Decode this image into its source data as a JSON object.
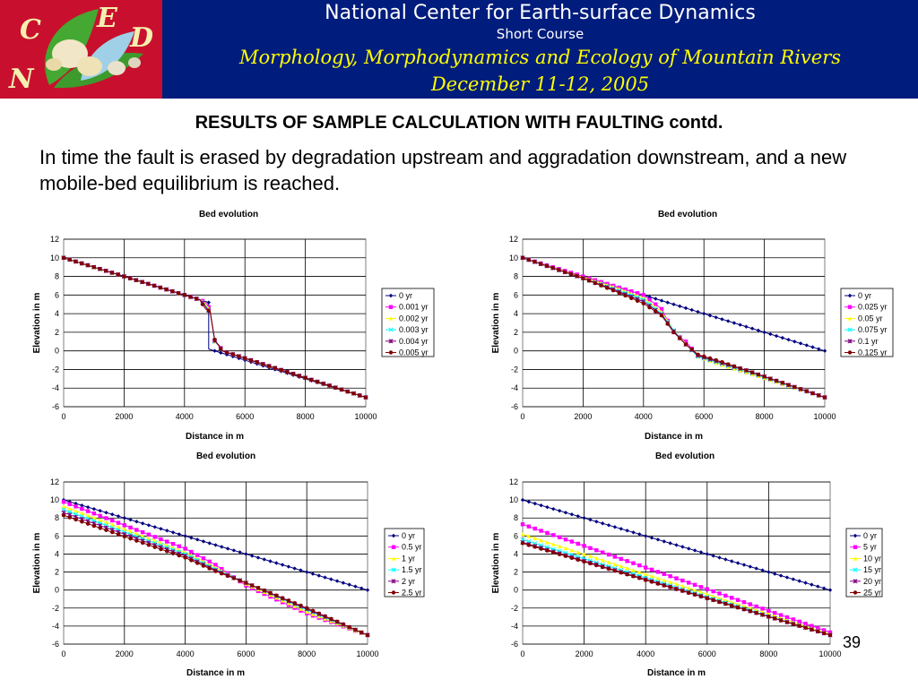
{
  "header": {
    "logo_letters": [
      "C",
      "E",
      "D",
      "N"
    ],
    "organization": "National Center for Earth-surface Dynamics",
    "course": "Short Course",
    "topic": "Morphology, Morphodynamics and Ecology of Mountain Rivers",
    "dates": "December 11-12, 2005",
    "colors": {
      "background": "#001c7c",
      "logo_background": "#c8102e",
      "highlight": "#ffff00"
    }
  },
  "slide": {
    "title": "RESULTS OF SAMPLE CALCULATION WITH FAULTING contd.",
    "description": "In time the fault is erased by degradation upstream and aggradation downstream, and a new mobile-bed equilibrium is reached.",
    "page_number": "39"
  },
  "series_styles": [
    {
      "color": "#00007f",
      "marker": "diamond"
    },
    {
      "color": "#ff00ff",
      "marker": "square"
    },
    {
      "color": "#ffff00",
      "marker": "triangle"
    },
    {
      "color": "#00ffff",
      "marker": "x"
    },
    {
      "color": "#7f007f",
      "marker": "star"
    },
    {
      "color": "#800000",
      "marker": "circle"
    }
  ],
  "chart_data": [
    {
      "type": "line",
      "title": "Bed evolution",
      "xlabel": "Distance in m",
      "ylabel": "Elevation in m",
      "xlim": [
        0,
        10000
      ],
      "ylim": [
        -6,
        12
      ],
      "xticks": [
        "0",
        "2000",
        "4000",
        "6000",
        "8000",
        "10000"
      ],
      "yticks": [
        "12",
        "10",
        "8",
        "6",
        "4",
        "2",
        "0",
        "-2",
        "-4",
        "-6"
      ],
      "grid": true,
      "legend": "right",
      "series": [
        {
          "name": "0 yr",
          "points": [
            [
              0,
              10
            ],
            [
              4800,
              5.2
            ],
            [
              4800,
              0.2
            ],
            [
              10000,
              -5
            ]
          ]
        },
        {
          "name": "0.001 yr",
          "points": [
            [
              0,
              10
            ],
            [
              4500,
              5.5
            ],
            [
              4650,
              5.3
            ],
            [
              4750,
              5.0
            ],
            [
              4850,
              4.4
            ],
            [
              5000,
              1.0
            ],
            [
              5150,
              0.6
            ],
            [
              5250,
              0.0
            ],
            [
              10000,
              -5
            ]
          ]
        },
        {
          "name": "0.002 yr",
          "points": [
            [
              0,
              10
            ],
            [
              4500,
              5.5
            ],
            [
              4650,
              5.2
            ],
            [
              4750,
              4.8
            ],
            [
              4850,
              4.3
            ],
            [
              5000,
              1.0
            ],
            [
              5150,
              0.5
            ],
            [
              5250,
              0.0
            ],
            [
              10000,
              -5
            ]
          ]
        },
        {
          "name": "0.003 yr",
          "points": [
            [
              0,
              10
            ],
            [
              4500,
              5.5
            ],
            [
              4650,
              5.1
            ],
            [
              4750,
              4.6
            ],
            [
              4850,
              4.2
            ],
            [
              5000,
              1.0
            ],
            [
              5150,
              0.5
            ],
            [
              5250,
              0.0
            ],
            [
              10000,
              -5
            ]
          ]
        },
        {
          "name": "0.004 yr",
          "points": [
            [
              0,
              10
            ],
            [
              4500,
              5.5
            ],
            [
              4650,
              5.0
            ],
            [
              4750,
              4.5
            ],
            [
              4850,
              4.2
            ],
            [
              5000,
              1.1
            ],
            [
              5150,
              0.5
            ],
            [
              5250,
              0.0
            ],
            [
              10000,
              -5
            ]
          ]
        },
        {
          "name": "0.005 yr",
          "points": [
            [
              0,
              10
            ],
            [
              4500,
              5.5
            ],
            [
              4600,
              5.0
            ],
            [
              4700,
              4.5
            ],
            [
              4850,
              4.2
            ],
            [
              5000,
              1.2
            ],
            [
              5150,
              0.5
            ],
            [
              5250,
              0.0
            ],
            [
              10000,
              -5
            ]
          ]
        }
      ]
    },
    {
      "type": "line",
      "title": "Bed evolution",
      "xlabel": "Distance in m",
      "ylabel": "Elevation in m",
      "xlim": [
        0,
        10000
      ],
      "ylim": [
        -6,
        12
      ],
      "xticks": [
        "0",
        "2000",
        "4000",
        "6000",
        "8000",
        "10000"
      ],
      "yticks": [
        "12",
        "10",
        "8",
        "6",
        "4",
        "2",
        "0",
        "-2",
        "-4",
        "-6"
      ],
      "grid": true,
      "legend": "right",
      "series": [
        {
          "name": "0 yr",
          "points": [
            [
              0,
              10
            ],
            [
              10000,
              0
            ]
          ]
        },
        {
          "name": "0.025 yr",
          "points": [
            [
              0,
              10
            ],
            [
              2000,
              8.0
            ],
            [
              3000,
              7.0
            ],
            [
              4000,
              6.0
            ],
            [
              4600,
              4.5
            ],
            [
              5000,
              2.0
            ],
            [
              5400,
              1.0
            ],
            [
              5800,
              -0.5
            ],
            [
              6500,
              -1.4
            ],
            [
              7500,
              -2.4
            ],
            [
              10000,
              -5
            ]
          ]
        },
        {
          "name": "0.05 yr",
          "points": [
            [
              0,
              10
            ],
            [
              2000,
              7.9
            ],
            [
              3000,
              6.9
            ],
            [
              4000,
              5.7
            ],
            [
              4600,
              4.2
            ],
            [
              5000,
              2.2
            ],
            [
              5400,
              0.8
            ],
            [
              5800,
              -0.6
            ],
            [
              6500,
              -1.4
            ],
            [
              7500,
              -2.4
            ],
            [
              10000,
              -5
            ]
          ]
        },
        {
          "name": "0.075 yr",
          "points": [
            [
              0,
              10
            ],
            [
              2000,
              7.8
            ],
            [
              3000,
              6.7
            ],
            [
              4000,
              5.5
            ],
            [
              4600,
              4.0
            ],
            [
              5000,
              2.2
            ],
            [
              5400,
              0.7
            ],
            [
              5800,
              -0.6
            ],
            [
              6500,
              -1.3
            ],
            [
              7500,
              -2.3
            ],
            [
              10000,
              -5
            ]
          ]
        },
        {
          "name": "0.1 yr",
          "points": [
            [
              0,
              10
            ],
            [
              2000,
              7.8
            ],
            [
              3000,
              6.6
            ],
            [
              4000,
              5.3
            ],
            [
              4600,
              3.9
            ],
            [
              5000,
              2.1
            ],
            [
              5400,
              0.7
            ],
            [
              5800,
              -0.5
            ],
            [
              6500,
              -1.2
            ],
            [
              7500,
              -2.2
            ],
            [
              10000,
              -5
            ]
          ]
        },
        {
          "name": "0.125 yr",
          "points": [
            [
              0,
              10
            ],
            [
              2000,
              7.8
            ],
            [
              3000,
              6.5
            ],
            [
              4000,
              5.1
            ],
            [
              4600,
              3.8
            ],
            [
              5000,
              2.0
            ],
            [
              5400,
              0.7
            ],
            [
              5800,
              -0.4
            ],
            [
              6500,
              -1.1
            ],
            [
              7500,
              -2.2
            ],
            [
              10000,
              -5
            ]
          ]
        }
      ]
    },
    {
      "type": "line",
      "title": "Bed evolution",
      "xlabel": "Distance in m",
      "ylabel": "Elevation in m",
      "xlim": [
        0,
        10000
      ],
      "ylim": [
        -6,
        12
      ],
      "xticks": [
        "0",
        "2000",
        "4000",
        "6000",
        "8000",
        "10000"
      ],
      "yticks": [
        "12",
        "10",
        "8",
        "6",
        "4",
        "2",
        "0",
        "-2",
        "-4",
        "-6"
      ],
      "grid": true,
      "legend": "right",
      "series": [
        {
          "name": "0 yr",
          "points": [
            [
              0,
              10
            ],
            [
              10000,
              0
            ]
          ]
        },
        {
          "name": "0.5 yr",
          "points": [
            [
              0,
              9.8
            ],
            [
              4000,
              4.6
            ],
            [
              5000,
              2.8
            ],
            [
              6000,
              0.5
            ],
            [
              8000,
              -2.6
            ],
            [
              10000,
              -5
            ]
          ]
        },
        {
          "name": "1 yr",
          "points": [
            [
              0,
              9.3
            ],
            [
              4000,
              4.2
            ],
            [
              5000,
              2.5
            ],
            [
              6000,
              0.7
            ],
            [
              8000,
              -2.4
            ],
            [
              10000,
              -5
            ]
          ]
        },
        {
          "name": "1.5 yr",
          "points": [
            [
              0,
              8.9
            ],
            [
              4000,
              4.0
            ],
            [
              5000,
              2.3
            ],
            [
              6000,
              0.8
            ],
            [
              8000,
              -2.2
            ],
            [
              10000,
              -5
            ]
          ]
        },
        {
          "name": "2 yr",
          "points": [
            [
              0,
              8.6
            ],
            [
              4000,
              3.8
            ],
            [
              5000,
              2.2
            ],
            [
              6000,
              0.8
            ],
            [
              8000,
              -2.1
            ],
            [
              10000,
              -5
            ]
          ]
        },
        {
          "name": "2.5 yr",
          "points": [
            [
              0,
              8.3
            ],
            [
              4000,
              3.6
            ],
            [
              5000,
              2.1
            ],
            [
              6000,
              0.8
            ],
            [
              8000,
              -2.0
            ],
            [
              10000,
              -5
            ]
          ]
        }
      ]
    },
    {
      "type": "line",
      "title": "Bed evolution",
      "xlabel": "Distance in m",
      "ylabel": "Elevation in m",
      "xlim": [
        0,
        10000
      ],
      "ylim": [
        -6,
        12
      ],
      "xticks": [
        "0",
        "2000",
        "4000",
        "6000",
        "8000",
        "10000"
      ],
      "yticks": [
        "12",
        "10",
        "8",
        "6",
        "4",
        "2",
        "0",
        "-2",
        "-4",
        "-6"
      ],
      "grid": true,
      "legend": "right",
      "series": [
        {
          "name": "0 yr",
          "points": [
            [
              0,
              10
            ],
            [
              10000,
              0
            ]
          ]
        },
        {
          "name": "5 yr",
          "points": [
            [
              0,
              7.3
            ],
            [
              10000,
              -4.7
            ]
          ]
        },
        {
          "name": "10 yr",
          "points": [
            [
              0,
              6.2
            ],
            [
              10000,
              -4.9
            ]
          ]
        },
        {
          "name": "15 yr",
          "points": [
            [
              0,
              5.6
            ],
            [
              10000,
              -5
            ]
          ]
        },
        {
          "name": "20 yr",
          "points": [
            [
              0,
              5.3
            ],
            [
              10000,
              -5
            ]
          ]
        },
        {
          "name": "25 yr",
          "points": [
            [
              0,
              5.2
            ],
            [
              10000,
              -5
            ]
          ]
        }
      ]
    }
  ]
}
